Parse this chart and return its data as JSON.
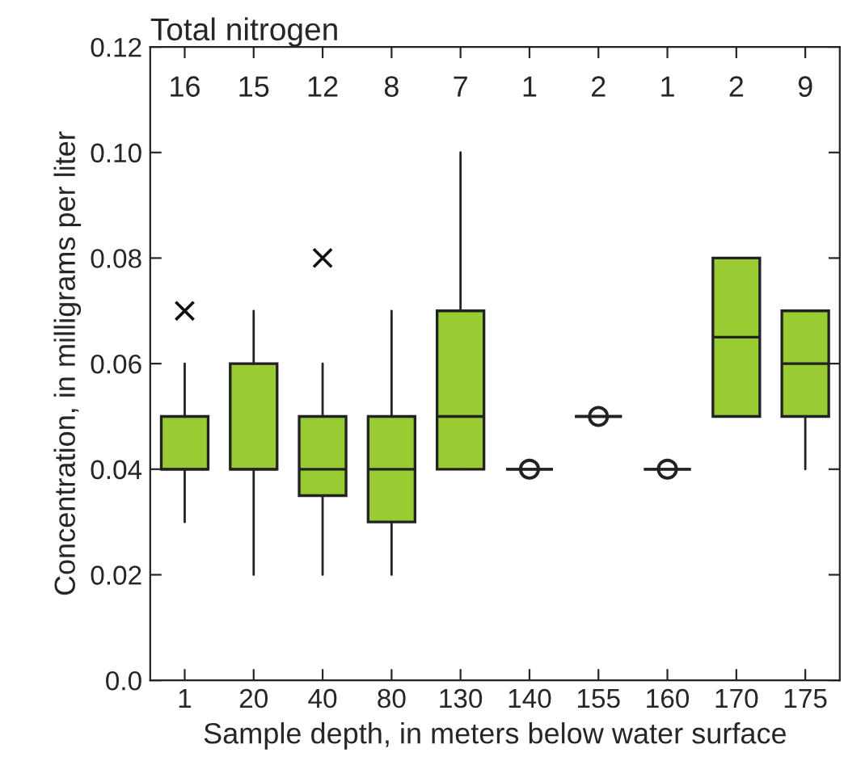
{
  "chart_data": {
    "type": "box",
    "title": "Total nitrogen",
    "xlabel": "Sample depth, in meters below water surface",
    "ylabel": "Concentration, in milligrams per liter",
    "categories": [
      "1",
      "20",
      "40",
      "80",
      "130",
      "140",
      "155",
      "160",
      "170",
      "175"
    ],
    "colors": [
      "#99cc33",
      "#99cc33",
      "#99cc33",
      "#99cc33",
      "#99cc33",
      "#222222",
      "#222222",
      "#222222",
      "#99cc33",
      "#99cc33"
    ],
    "boxes": [
      {
        "low": 0.03,
        "q1": 0.04,
        "median": 0.04,
        "q3": 0.05,
        "high": 0.06,
        "outliers": [
          0.07
        ]
      },
      {
        "low": 0.02,
        "q1": 0.04,
        "median": 0.04,
        "q3": 0.06,
        "high": 0.07
      },
      {
        "low": 0.02,
        "q1": 0.035,
        "median": 0.04,
        "q3": 0.05,
        "high": 0.06,
        "outliers": [
          0.08
        ]
      },
      {
        "low": 0.02,
        "q1": 0.03,
        "median": 0.04,
        "q3": 0.05,
        "high": 0.07
      },
      {
        "low": 0.04,
        "q1": 0.04,
        "median": 0.05,
        "q3": 0.07,
        "high": 0.1
      },
      {
        "low": 0.04,
        "q1": 0.04,
        "median": 0.04,
        "q3": 0.04,
        "high": 0.04
      },
      {
        "low": 0.05,
        "q1": 0.05,
        "median": 0.05,
        "q3": 0.05,
        "high": 0.05
      },
      {
        "low": 0.04,
        "q1": 0.04,
        "median": 0.04,
        "q3": 0.04,
        "high": 0.04
      },
      {
        "low": 0.05,
        "q1": 0.05,
        "median": 0.065,
        "q3": 0.08,
        "high": 0.08
      },
      {
        "low": 0.04,
        "q1": 0.05,
        "median": 0.06,
        "q3": 0.07,
        "high": 0.07
      }
    ],
    "series": [
      {
        "type": "scatter",
        "x": [
          "140",
          "155",
          "160"
        ],
        "values": [
          0.04,
          0.05,
          0.04
        ],
        "color": "#222222",
        "marker": "circle"
      }
    ],
    "ylim": [
      0,
      0.12
    ],
    "yticks": [
      {
        "value": 0,
        "label": "0.0"
      },
      0.02,
      0.04,
      0.06,
      0.08,
      {
        "value": 0.1,
        "label": "0.10"
      },
      0.12
    ],
    "annotations": [
      {
        "text": "16",
        "x": "1"
      },
      {
        "text": "15",
        "x": "20"
      },
      {
        "text": "12",
        "x": "40"
      },
      {
        "text": "8",
        "x": "80"
      },
      {
        "text": "7",
        "x": "130"
      },
      {
        "text": "1",
        "x": "140"
      },
      {
        "text": "2",
        "x": "155"
      },
      {
        "text": "1",
        "x": "160"
      },
      {
        "text": "2",
        "x": "170"
      },
      {
        "text": "9",
        "x": "175"
      }
    ],
    "grid": false,
    "legend": false
  }
}
